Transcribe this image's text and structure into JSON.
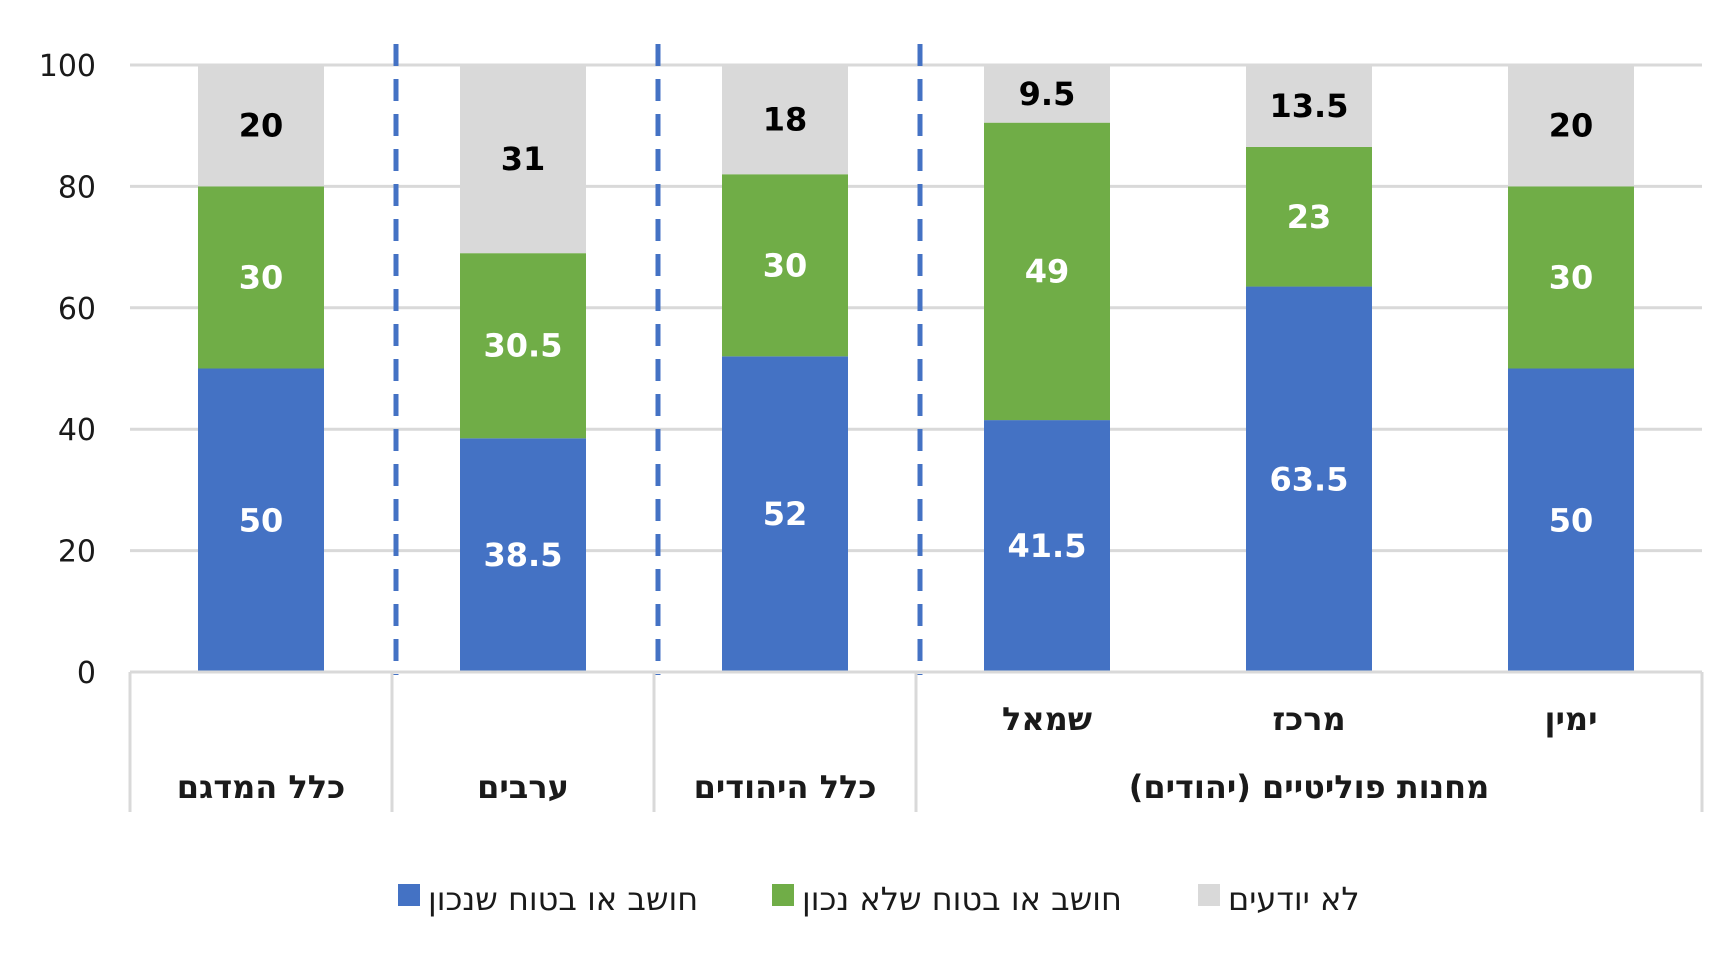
{
  "chart_data": {
    "type": "bar",
    "stacked": true,
    "ylim": [
      0,
      100
    ],
    "yticks": [
      0,
      20,
      40,
      60,
      80,
      100
    ],
    "grid": true,
    "categories": [
      "ימין",
      "מרכז",
      "שמאל",
      "כלל היהודים",
      "ערבים",
      "כלל המדגם"
    ],
    "group_labels": [
      {
        "label": "מחנות פוליטיים (יהודים)",
        "members": [
          "ימין",
          "מרכז",
          "שמאל"
        ]
      },
      {
        "label": "כלל היהודים",
        "members": [
          "כלל היהודים"
        ]
      },
      {
        "label": "ערבים",
        "members": [
          "ערבים"
        ]
      },
      {
        "label": "כלל המדגם",
        "members": [
          "כלל המדגם"
        ]
      }
    ],
    "series": [
      {
        "name": "חושב או בטוח שנכון",
        "color": "#4472C4",
        "label_color": "#ffffff",
        "values": [
          50,
          63.5,
          41.5,
          52,
          38.5,
          50
        ]
      },
      {
        "name": "חושב או בטוח שלא נכון",
        "color": "#70AD47",
        "label_color": "#ffffff",
        "values": [
          30,
          23,
          49,
          30,
          30.5,
          30
        ]
      },
      {
        "name": "לא יודעים",
        "color": "#D9D9D9",
        "label_color": "#000000",
        "values": [
          20,
          13.5,
          9.5,
          18,
          31,
          20
        ]
      }
    ],
    "legend_position": "bottom",
    "separator_color": "#4472C4"
  }
}
